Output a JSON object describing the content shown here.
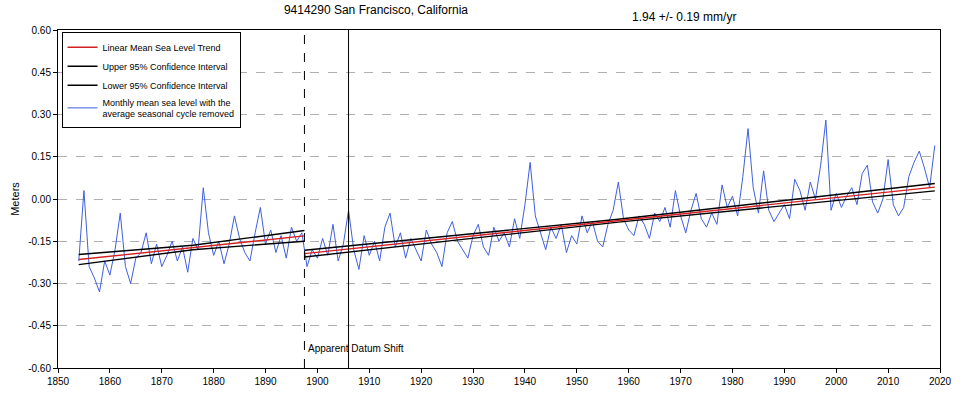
{
  "chart_data": {
    "type": "line",
    "title": "9414290 San Francisco, California",
    "subtitle": "1.94 +/- 0.19 mm/yr",
    "y_label": "Meters",
    "xlim": [
      1850,
      2020
    ],
    "xticks": [
      1850,
      1860,
      1870,
      1880,
      1890,
      1900,
      1910,
      1920,
      1930,
      1940,
      1950,
      1960,
      1970,
      1980,
      1990,
      2000,
      2010,
      2020
    ],
    "ylim": [
      -0.6,
      0.6
    ],
    "yticks": [
      {
        "value": -0.6,
        "label": "-0.60"
      },
      {
        "value": -0.45,
        "label": "-0.45"
      },
      {
        "value": -0.3,
        "label": "-0.30"
      },
      {
        "value": -0.15,
        "label": "-0.15"
      },
      {
        "value": 0,
        "label": "0.00"
      },
      {
        "value": 0.15,
        "label": "0.15"
      },
      {
        "value": 0.3,
        "label": "0.30"
      },
      {
        "value": 0.45,
        "label": "0.45"
      },
      {
        "value": 0.6,
        "label": "0.60"
      }
    ],
    "grid": true,
    "legend": "top left",
    "vlines": [
      {
        "x": 1897.5,
        "line_style": "dashed"
      },
      {
        "x": 1906,
        "line_style": "solid"
      }
    ],
    "annotations": [
      {
        "text": "Apparent Datum Shift",
        "x": 1897.5,
        "y": -0.53
      }
    ],
    "series": [
      {
        "name": "Linear Mean Sea Level Trend",
        "color": "#d42020",
        "line_style": "solid",
        "x": [
          1854,
          1897.5,
          1897.5,
          1897.5,
          2019
        ],
        "values": [
          -0.215,
          -0.131,
          null,
          -0.194,
          0.042
        ]
      },
      {
        "name": "Upper 95% Confidence Interval",
        "color": "#000000",
        "line_style": "solid",
        "x": [
          1854,
          1876,
          1897.5,
          1897.5,
          1897.5,
          1958,
          2019
        ],
        "values": [
          -0.197,
          -0.164,
          -0.112,
          null,
          -0.182,
          -0.072,
          0.055
        ]
      },
      {
        "name": "Lower 95% Confidence Interval",
        "color": "#000000",
        "line_style": "solid",
        "x": [
          1854,
          1876,
          1897.5,
          1897.5,
          1897.5,
          1958,
          2019
        ],
        "values": [
          -0.233,
          -0.18,
          -0.15,
          null,
          -0.206,
          -0.082,
          0.029
        ]
      },
      {
        "name": "Monthly mean sea level with the\naverage seasonal cycle removed",
        "color": "#3f5fe0",
        "line_style": "solid",
        "x": [
          1854,
          1855,
          1856,
          1857,
          1858,
          1859,
          1860,
          1861,
          1862,
          1863,
          1864,
          1865,
          1866,
          1867,
          1868,
          1869,
          1870,
          1871,
          1872,
          1873,
          1874,
          1875,
          1876,
          1877,
          1878,
          1879,
          1880,
          1881,
          1882,
          1883,
          1884,
          1885,
          1886,
          1887,
          1888,
          1889,
          1890,
          1891,
          1892,
          1893,
          1894,
          1895,
          1896,
          1897,
          1898,
          1899,
          1900,
          1901,
          1902,
          1903,
          1904,
          1905,
          1906,
          1907,
          1908,
          1909,
          1910,
          1911,
          1912,
          1913,
          1914,
          1915,
          1916,
          1917,
          1918,
          1919,
          1920,
          1921,
          1922,
          1923,
          1924,
          1925,
          1926,
          1927,
          1928,
          1929,
          1930,
          1931,
          1932,
          1933,
          1934,
          1935,
          1936,
          1937,
          1938,
          1939,
          1940,
          1941,
          1942,
          1943,
          1944,
          1945,
          1946,
          1947,
          1948,
          1949,
          1950,
          1951,
          1952,
          1953,
          1954,
          1955,
          1956,
          1957,
          1958,
          1959,
          1960,
          1961,
          1962,
          1963,
          1964,
          1965,
          1966,
          1967,
          1968,
          1969,
          1970,
          1971,
          1972,
          1973,
          1974,
          1975,
          1976,
          1977,
          1978,
          1979,
          1980,
          1981,
          1982,
          1983,
          1984,
          1985,
          1986,
          1987,
          1988,
          1989,
          1990,
          1991,
          1992,
          1993,
          1994,
          1995,
          1996,
          1997,
          1998,
          1999,
          2000,
          2001,
          2002,
          2003,
          2004,
          2005,
          2006,
          2007,
          2008,
          2009,
          2010,
          2011,
          2012,
          2013,
          2014,
          2015,
          2016,
          2017,
          2018,
          2019
        ],
        "values": [
          -0.22,
          0.03,
          -0.24,
          -0.28,
          -0.33,
          -0.22,
          -0.27,
          -0.18,
          -0.05,
          -0.24,
          -0.3,
          -0.21,
          -0.19,
          -0.12,
          -0.23,
          -0.16,
          -0.24,
          -0.2,
          -0.15,
          -0.22,
          -0.17,
          -0.26,
          -0.14,
          -0.18,
          0.04,
          -0.12,
          -0.2,
          -0.15,
          -0.23,
          -0.16,
          -0.06,
          -0.14,
          -0.19,
          -0.22,
          -0.12,
          -0.03,
          -0.16,
          -0.11,
          -0.19,
          -0.13,
          -0.21,
          -0.1,
          -0.15,
          -0.12,
          -0.24,
          -0.18,
          -0.21,
          -0.14,
          -0.2,
          -0.09,
          -0.22,
          -0.16,
          -0.04,
          -0.18,
          -0.25,
          -0.13,
          -0.2,
          -0.15,
          -0.22,
          -0.1,
          -0.05,
          -0.17,
          -0.12,
          -0.21,
          -0.14,
          -0.18,
          -0.22,
          -0.11,
          -0.16,
          -0.19,
          -0.24,
          -0.12,
          -0.08,
          -0.15,
          -0.18,
          -0.21,
          -0.13,
          -0.09,
          -0.17,
          -0.2,
          -0.1,
          -0.15,
          -0.12,
          -0.17,
          -0.07,
          -0.14,
          -0.02,
          0.13,
          -0.06,
          -0.12,
          -0.18,
          -0.1,
          -0.14,
          -0.09,
          -0.19,
          -0.13,
          -0.16,
          -0.06,
          -0.12,
          -0.08,
          -0.15,
          -0.17,
          -0.09,
          -0.04,
          0.06,
          -0.07,
          -0.11,
          -0.13,
          -0.06,
          -0.09,
          -0.14,
          -0.05,
          -0.08,
          -0.03,
          -0.1,
          0.03,
          -0.06,
          -0.12,
          -0.04,
          0.02,
          -0.07,
          -0.1,
          -0.05,
          -0.09,
          0.05,
          -0.03,
          0.01,
          -0.06,
          0.08,
          0.25,
          0.04,
          -0.05,
          0.1,
          -0.04,
          -0.08,
          -0.05,
          -0.02,
          -0.07,
          0.07,
          0.03,
          -0.04,
          0.06,
          0.0,
          0.12,
          0.28,
          -0.04,
          0.02,
          -0.03,
          0.01,
          0.04,
          -0.02,
          0.09,
          0.12,
          -0.01,
          -0.05,
          0.0,
          0.14,
          -0.02,
          -0.06,
          -0.03,
          0.08,
          0.13,
          0.17,
          0.11,
          0.04,
          0.19
        ]
      }
    ]
  }
}
